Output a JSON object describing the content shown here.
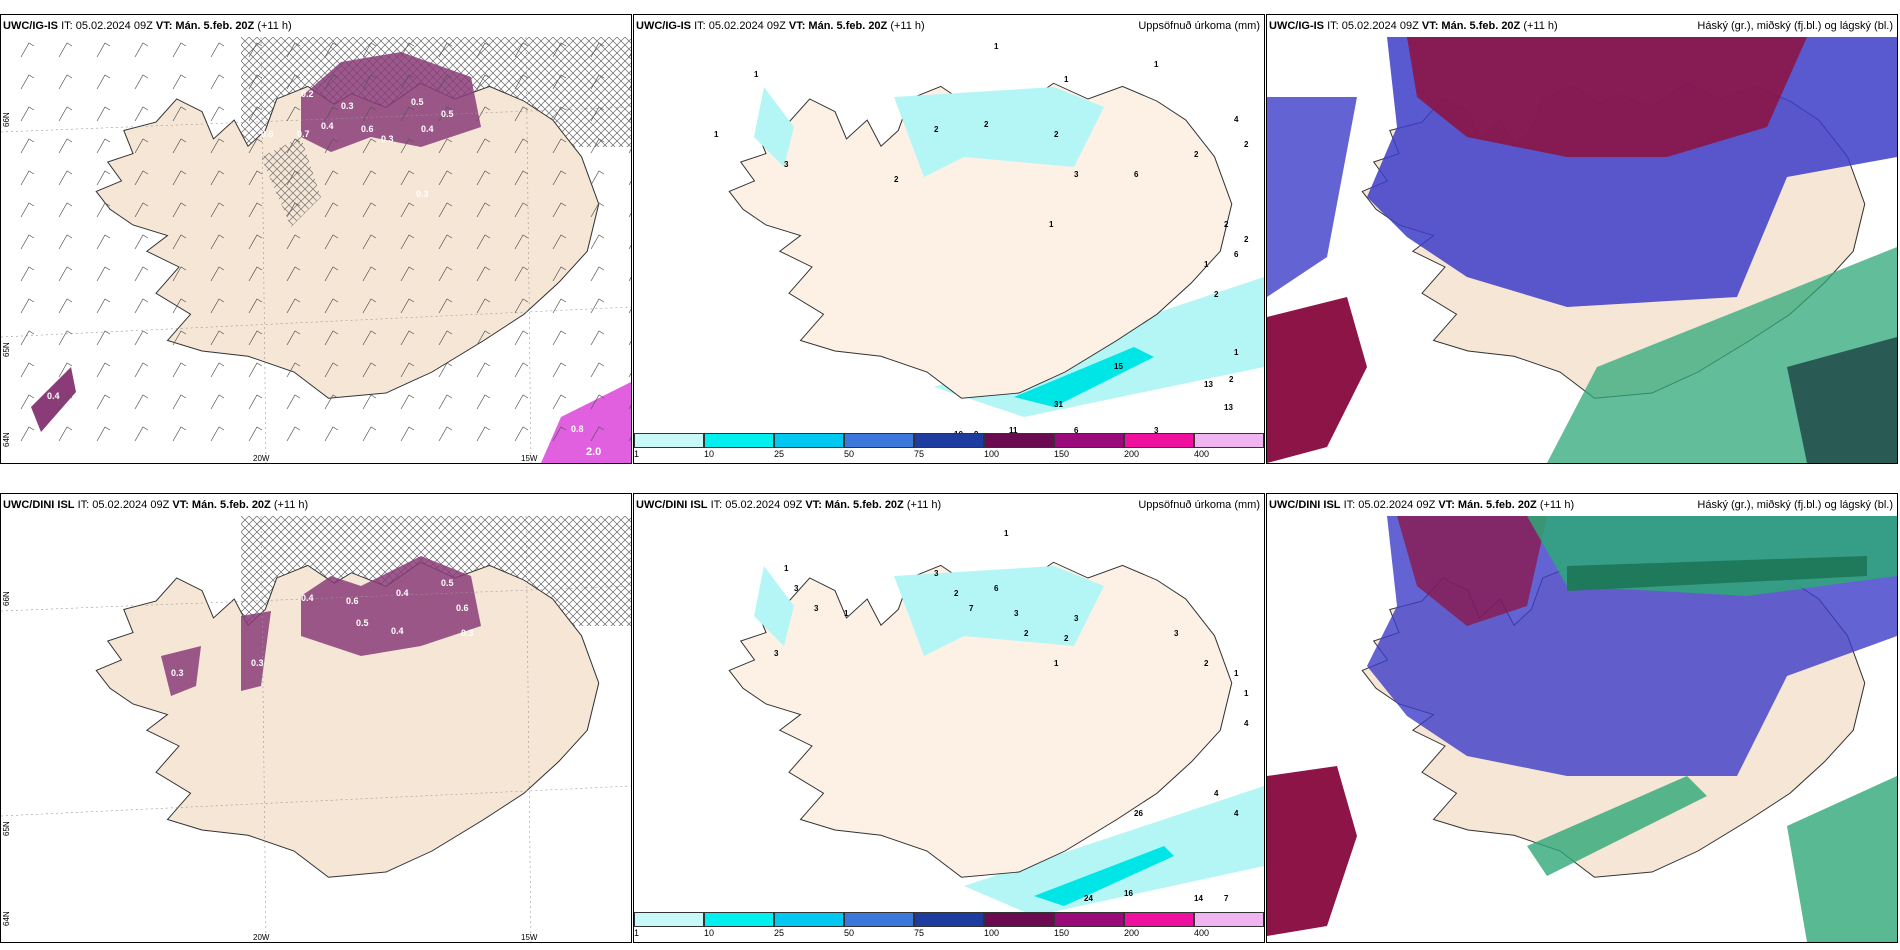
{
  "panels": [
    {
      "model": "UWC/IG-IS",
      "it": "IT: 05.02.2024 09Z",
      "vt": "VT: Mán. 5.feb. 20Z",
      "lead": "(+11 h)",
      "right": ""
    },
    {
      "model": "UWC/IG-IS",
      "it": "IT: 05.02.2024 09Z",
      "vt": "VT: Mán. 5.feb. 20Z",
      "lead": "(+11 h)",
      "right": "Uppsöfnuð úrkoma (mm)"
    },
    {
      "model": "UWC/IG-IS",
      "it": "IT: 05.02.2024 09Z",
      "vt": "VT: Mán. 5.feb. 20Z",
      "lead": "(+11 h)",
      "right": "Háský (gr.), miðský (fj.bl.) og lágský (bl.)"
    },
    {
      "model": "UWC/DINI ISL",
      "it": "IT: 05.02.2024 09Z",
      "vt": "VT: Mán. 5.feb. 20Z",
      "lead": "(+11 h)",
      "right": ""
    },
    {
      "model": "UWC/DINI ISL",
      "it": "IT: 05.02.2024 09Z",
      "vt": "VT: Mán. 5.feb. 20Z",
      "lead": "(+11 h)",
      "right": "Uppsöfnuð úrkoma (mm)"
    },
    {
      "model": "UWC/DINI ISL",
      "it": "IT: 05.02.2024 09Z",
      "vt": "VT: Mán. 5.feb. 20Z",
      "lead": "(+11 h)",
      "right": "Háský (gr.), miðský (fj.bl.) og lágský (bl.)"
    }
  ],
  "axis_labels": {
    "lon20": "20W",
    "lon15": "15W",
    "lat66": "66N",
    "lat65": "65N",
    "lat64": "64N"
  },
  "colorbar": {
    "ticks": [
      "1",
      "10",
      "25",
      "50",
      "75",
      "100",
      "150",
      "200",
      "400"
    ],
    "colors": [
      "#c8f8f8",
      "#00f0f0",
      "#00c8f0",
      "#3c78dc",
      "#1e3ca0",
      "#6a0a50",
      "#9a0a7a",
      "#f010a0",
      "#f0b4f0"
    ]
  },
  "colors": {
    "land": "#f5e6d6",
    "precip_light": "#b4f6f6",
    "precip_mid": "#00e6e6",
    "snow_purple": "#8a3c78",
    "cloud_high": "#2ea878",
    "cloud_mid": "#3c3cc8",
    "cloud_low": "#8c1446"
  },
  "precip_values_top": [
    "1",
    "1",
    "1",
    "1",
    "1",
    "2",
    "2",
    "2",
    "2",
    "3",
    "3",
    "6",
    "4",
    "2",
    "2",
    "1",
    "2",
    "2",
    "1",
    "6",
    "2",
    "1",
    "2",
    "15",
    "13",
    "13",
    "31",
    "10",
    "9",
    "11",
    "6",
    "3"
  ],
  "precip_values_bottom": [
    "1",
    "1",
    "3",
    "3",
    "3",
    "1",
    "2",
    "3",
    "7",
    "6",
    "3",
    "2",
    "3",
    "2",
    "1",
    "3",
    "2",
    "1",
    "1",
    "4",
    "4",
    "4",
    "26",
    "24",
    "16",
    "14",
    "7",
    "5",
    "4"
  ],
  "snow_values_top": [
    "0.2",
    "0.3",
    "0.5",
    "0.4",
    "0.6",
    "0.3",
    "0.5",
    "0.7",
    "0.4",
    "0.6",
    "0.3",
    "0.4",
    "2.0",
    "0.8"
  ],
  "snow_values_bottom": [
    "0.4",
    "0.6",
    "0.4",
    "0.5",
    "0.6",
    "0.3",
    "0.5",
    "0.4",
    "0.3",
    "0.3",
    "0.6"
  ]
}
